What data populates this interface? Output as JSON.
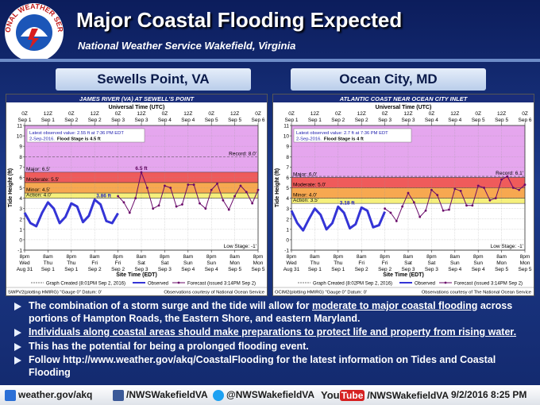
{
  "header": {
    "title": "Major Coastal Flooding Expected",
    "subtitle": "National Weather Service Wakefield, Virginia",
    "logo_text": "NATIONAL WEATHER SERVICE"
  },
  "locations": [
    "Sewells Point, VA",
    "Ocean City, MD"
  ],
  "chart_data": [
    {
      "type": "line",
      "title": "JAMES RIVER (VA) AT SEWELL'S POINT",
      "top_axis_label": "Universal Time (UTC)",
      "x_label": "Site Time (EDT)",
      "y_label": "Tide Height (ft)",
      "callout": [
        "Latest observed value: 2.55 ft at 7:36 PM EDT",
        "2-Sep-2016.",
        "Flood Stage is 4.5 ft"
      ],
      "xlim": [
        0,
        120
      ],
      "ylim": [
        -1,
        11
      ],
      "yticks": [
        -1,
        0,
        1,
        2,
        3,
        4,
        5,
        6,
        7,
        8,
        9,
        10,
        11
      ],
      "grid": true,
      "xticks": [
        {
          "value": 0,
          "label": "8pm",
          "day": "Wed",
          "date": "Aug 31"
        },
        {
          "value": 12,
          "label": "8am",
          "day": "Thu",
          "date": "Sep 1"
        },
        {
          "value": 24,
          "label": "8pm",
          "day": "Thu",
          "date": "Sep 1"
        },
        {
          "value": 36,
          "label": "8am",
          "day": "Fri",
          "date": "Sep 2"
        },
        {
          "value": 48,
          "label": "8pm",
          "day": "Fri",
          "date": "Sep 2"
        },
        {
          "value": 60,
          "label": "8am",
          "day": "Sat",
          "date": "Sep 3"
        },
        {
          "value": 72,
          "label": "8pm",
          "day": "Sat",
          "date": "Sep 3"
        },
        {
          "value": 84,
          "label": "8am",
          "day": "Sun",
          "date": "Sep 4"
        },
        {
          "value": 96,
          "label": "8pm",
          "day": "Sun",
          "date": "Sep 4"
        },
        {
          "value": 108,
          "label": "8am",
          "day": "Mon",
          "date": "Sep 5"
        },
        {
          "value": 120,
          "label": "8pm",
          "day": "Mon",
          "date": "Sep 5"
        }
      ],
      "x2ticks": [
        {
          "value": 0,
          "label": "0Z",
          "date": "Sep 1"
        },
        {
          "value": 12,
          "label": "12Z",
          "date": "Sep 1"
        },
        {
          "value": 24,
          "label": "0Z",
          "date": "Sep 2"
        },
        {
          "value": 36,
          "label": "12Z",
          "date": "Sep 2"
        },
        {
          "value": 48,
          "label": "0Z",
          "date": "Sep 3"
        },
        {
          "value": 60,
          "label": "12Z",
          "date": "Sep 3"
        },
        {
          "value": 72,
          "label": "0Z",
          "date": "Sep 4"
        },
        {
          "value": 84,
          "label": "12Z",
          "date": "Sep 4"
        },
        {
          "value": 96,
          "label": "0Z",
          "date": "Sep 5"
        },
        {
          "value": 108,
          "label": "12Z",
          "date": "Sep 5"
        },
        {
          "value": 120,
          "label": "0Z",
          "date": "Sep 6"
        }
      ],
      "stages": [
        {
          "label": "Action: 4.0'",
          "value": 4.0,
          "color": "#f6f07c"
        },
        {
          "label": "Minor: 4.5'",
          "value": 4.5,
          "color": "#f7a850"
        },
        {
          "label": "Moderate: 5.5'",
          "value": 5.5,
          "color": "#ef5b5b"
        },
        {
          "label": "Major: 6.5'",
          "value": 6.5,
          "color": "#e5a6ee"
        }
      ],
      "record": {
        "label": "Record: 8.0'",
        "value": 8.0
      },
      "low": {
        "label": "Low Stage: -1'",
        "value": -1
      },
      "created": "Graph Created (8:01PM Sep 2, 2016)",
      "series": [
        {
          "name": "Observed",
          "color": "#3434d6",
          "x": [
            0,
            3,
            6,
            9,
            12,
            15,
            18,
            21,
            24,
            27,
            30,
            33,
            36,
            39,
            42,
            45,
            48
          ],
          "values": [
            2.6,
            1.6,
            1.3,
            2.6,
            3.6,
            3.0,
            1.6,
            2.2,
            3.5,
            3.2,
            1.7,
            2.3,
            3.86,
            3.4,
            1.8,
            1.6,
            2.55
          ],
          "value_labels": [
            null,
            null,
            null,
            null,
            null,
            null,
            null,
            null,
            null,
            null,
            null,
            null,
            "3.86 ft",
            null,
            null,
            null,
            null
          ]
        },
        {
          "name": "Forecast (issued 3:14PM Sep 2)",
          "color": "#6a0a6a",
          "x": [
            48,
            51,
            54,
            57,
            60,
            63,
            66,
            69,
            72,
            75,
            78,
            81,
            84,
            87,
            90,
            93,
            96,
            99,
            102,
            105,
            108,
            111,
            114,
            117,
            120
          ],
          "values": [
            4.2,
            3.6,
            2.6,
            4.0,
            6.5,
            5.0,
            3.0,
            3.3,
            5.2,
            5.0,
            3.2,
            3.4,
            5.3,
            5.3,
            3.5,
            3.0,
            4.8,
            5.4,
            3.8,
            2.9,
            4.2,
            5.2,
            4.6,
            3.5,
            4.8
          ],
          "value_labels": [
            null,
            null,
            null,
            null,
            "6.5 ft",
            null,
            null,
            null,
            null,
            null,
            null,
            null,
            null,
            null,
            null,
            null,
            null,
            null,
            null,
            null,
            null,
            null,
            null,
            null,
            null
          ]
        }
      ],
      "footer_left": "SWPV2(plotting HMIRG) \"Gauge 0\" Datum: 0'",
      "footer_right": "Observations courtesy of National Ocean Service"
    },
    {
      "type": "line",
      "title": "ATLANTIC COAST NEAR OCEAN CITY INLET",
      "top_axis_label": "Universal Time (UTC)",
      "x_label": "Site Time (EDT)",
      "y_label": "Tide Height (ft)",
      "callout": [
        "Latest observed value: 2.7 ft at 7:36 PM EDT",
        "2-Sep-2016.",
        "Flood Stage is 4 ft"
      ],
      "xlim": [
        0,
        120
      ],
      "ylim": [
        -1,
        11
      ],
      "yticks": [
        -1,
        0,
        1,
        2,
        3,
        4,
        5,
        6,
        7,
        8,
        9,
        10,
        11
      ],
      "grid": true,
      "xticks": [
        {
          "value": 0,
          "label": "8pm",
          "day": "Wed",
          "date": "Aug 31"
        },
        {
          "value": 12,
          "label": "8am",
          "day": "Thu",
          "date": "Sep 1"
        },
        {
          "value": 24,
          "label": "8pm",
          "day": "Thu",
          "date": "Sep 1"
        },
        {
          "value": 36,
          "label": "8am",
          "day": "Fri",
          "date": "Sep 2"
        },
        {
          "value": 48,
          "label": "8pm",
          "day": "Fri",
          "date": "Sep 2"
        },
        {
          "value": 60,
          "label": "8am",
          "day": "Sat",
          "date": "Sep 3"
        },
        {
          "value": 72,
          "label": "8pm",
          "day": "Sat",
          "date": "Sep 3"
        },
        {
          "value": 84,
          "label": "8am",
          "day": "Sun",
          "date": "Sep 4"
        },
        {
          "value": 96,
          "label": "8pm",
          "day": "Sun",
          "date": "Sep 4"
        },
        {
          "value": 108,
          "label": "8am",
          "day": "Mon",
          "date": "Sep 5"
        },
        {
          "value": 120,
          "label": "8pm",
          "day": "Mon",
          "date": "Sep 5"
        }
      ],
      "x2ticks": [
        {
          "value": 0,
          "label": "0Z",
          "date": "Sep 1"
        },
        {
          "value": 12,
          "label": "12Z",
          "date": "Sep 1"
        },
        {
          "value": 24,
          "label": "0Z",
          "date": "Sep 2"
        },
        {
          "value": 36,
          "label": "12Z",
          "date": "Sep 2"
        },
        {
          "value": 48,
          "label": "0Z",
          "date": "Sep 3"
        },
        {
          "value": 60,
          "label": "12Z",
          "date": "Sep 3"
        },
        {
          "value": 72,
          "label": "0Z",
          "date": "Sep 4"
        },
        {
          "value": 84,
          "label": "12Z",
          "date": "Sep 4"
        },
        {
          "value": 96,
          "label": "0Z",
          "date": "Sep 5"
        },
        {
          "value": 108,
          "label": "12Z",
          "date": "Sep 5"
        },
        {
          "value": 120,
          "label": "0Z",
          "date": "Sep 6"
        }
      ],
      "stages": [
        {
          "label": "Action: 3.5'",
          "value": 3.5,
          "color": "#f6f07c"
        },
        {
          "label": "Minor: 4.0'",
          "value": 4.0,
          "color": "#f7a850"
        },
        {
          "label": "Moderate: 5.0'",
          "value": 5.0,
          "color": "#ef5b5b"
        },
        {
          "label": "Major: 6.0'",
          "value": 6.0,
          "color": "#e5a6ee"
        }
      ],
      "record": {
        "label": "Record: 6.1'",
        "value": 6.1
      },
      "low": {
        "label": "Low Stage: -1'",
        "value": -1
      },
      "created": "Graph Created (8:02PM Sep 2, 2016)",
      "series": [
        {
          "name": "Observed",
          "color": "#3434d6",
          "x": [
            0,
            3,
            6,
            9,
            12,
            15,
            18,
            21,
            24,
            27,
            30,
            33,
            36,
            39,
            42,
            45,
            48
          ],
          "values": [
            2.8,
            1.6,
            0.9,
            2.0,
            3.0,
            2.4,
            1.0,
            1.6,
            3.18,
            2.6,
            1.1,
            1.5,
            3.1,
            2.8,
            1.2,
            1.4,
            2.7
          ],
          "value_labels": [
            null,
            null,
            null,
            null,
            null,
            null,
            null,
            null,
            "3.18 ft",
            null,
            null,
            null,
            null,
            null,
            null,
            null,
            null
          ]
        },
        {
          "name": "Forecast (issued 3:14PM Sep 2)",
          "color": "#6a0a6a",
          "x": [
            48,
            51,
            54,
            57,
            60,
            63,
            66,
            69,
            72,
            75,
            78,
            81,
            84,
            87,
            90,
            93,
            96,
            99,
            102,
            105,
            108,
            111,
            114,
            117,
            120
          ],
          "values": [
            3.0,
            2.6,
            1.8,
            3.2,
            4.5,
            3.6,
            2.2,
            2.8,
            4.8,
            4.3,
            2.8,
            2.9,
            4.9,
            4.7,
            3.3,
            3.3,
            5.2,
            5.0,
            3.8,
            4.0,
            5.8,
            6.1,
            5.0,
            4.8,
            5.3
          ]
        }
      ],
      "footer_left": "OCIM2(plotting HMIRG) \"Gauge 0\" Datum: 0'",
      "footer_right": "Observations courtesy of The National Ocean Service"
    }
  ],
  "bullets": [
    [
      {
        "text": "The combination of a storm surge and the tide will allow for ",
        "underline": false
      },
      {
        "text": "moderate to major coastal flooding",
        "underline": true
      },
      {
        "text": " across portions of Hampton Roads, the Eastern Shore, and eastern Maryland.",
        "underline": false
      }
    ],
    [
      {
        "text": "Individuals along coastal areas should make preparations to protect life and property from rising water.",
        "underline": true
      }
    ],
    [
      {
        "text": "This has the potential for being a prolonged flooding event.",
        "underline": false
      }
    ],
    [
      {
        "text": "Follow http://www.weather.gov/akq/CoastalFlooding",
        "underline": false
      },
      {
        "text": " for the latest information on Tides and Coastal Flooding",
        "underline": false
      }
    ]
  ],
  "footer": {
    "website": "weather.gov/akq",
    "facebook": "/NWSWakefieldVA",
    "twitter": "@NWSWakefieldVA",
    "youtube_you": "You",
    "youtube_tube": "Tube",
    "youtube": "/NWSWakefieldVA",
    "timestamp": "9/2/2016 8:25 PM"
  }
}
